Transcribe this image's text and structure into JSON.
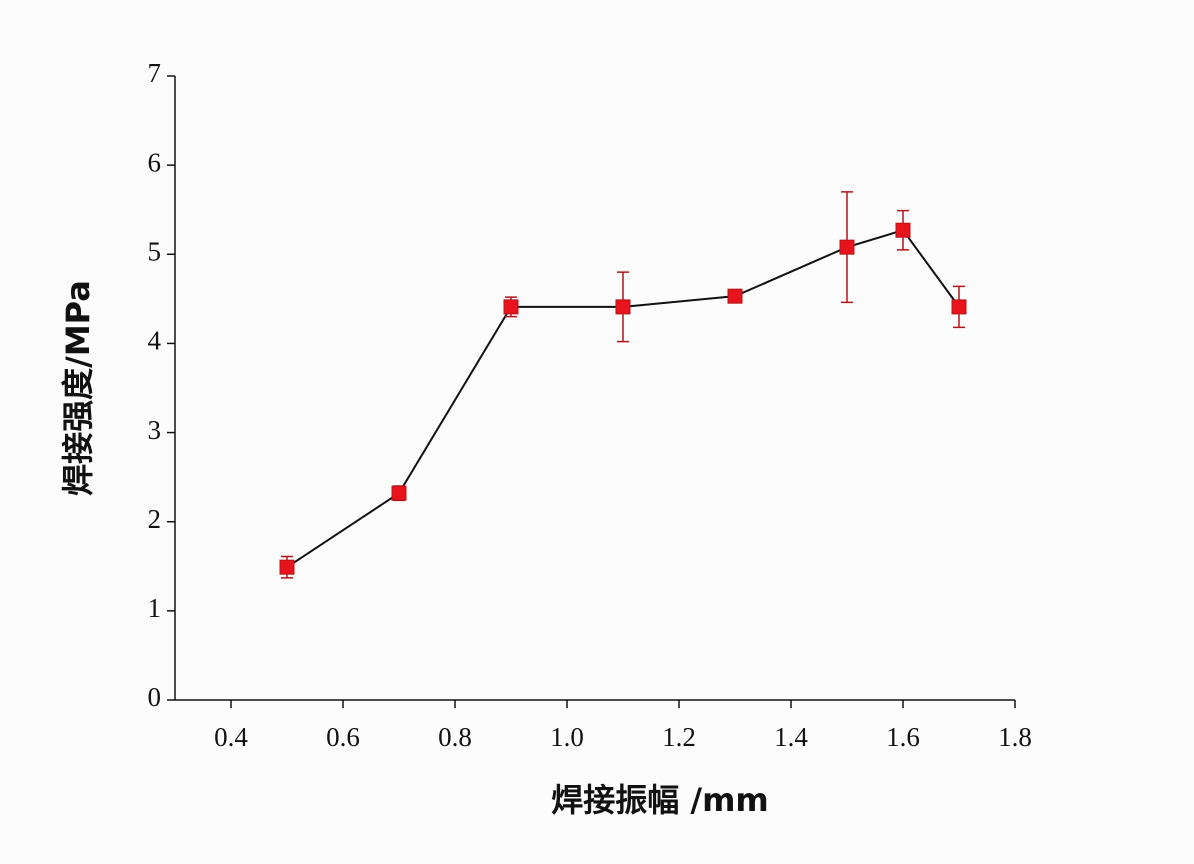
{
  "chart_data": {
    "type": "line",
    "x_label": "焊接振幅 /mm",
    "y_label": "焊接强度/MPa",
    "x": [
      0.5,
      0.7,
      0.9,
      1.1,
      1.3,
      1.5,
      1.6,
      1.7
    ],
    "series": [
      {
        "color": "#e8141c",
        "line_color": "#111111",
        "values": [
          1.49,
          2.32,
          4.41,
          4.41,
          4.53,
          5.08,
          5.27,
          4.41
        ],
        "errors": [
          0.12,
          0.08,
          0.11,
          0.39,
          0.04,
          0.62,
          0.22,
          0.23
        ]
      }
    ],
    "xlim": [
      0.3,
      1.8
    ],
    "xticks": [
      0.4,
      0.6,
      0.8,
      {
        "value": 1,
        "label": "1.0"
      },
      1.2,
      1.4,
      1.6,
      1.8
    ],
    "ylim": [
      0,
      7
    ],
    "yticks": [
      0,
      1,
      2,
      3,
      4,
      5,
      6,
      7
    ]
  }
}
